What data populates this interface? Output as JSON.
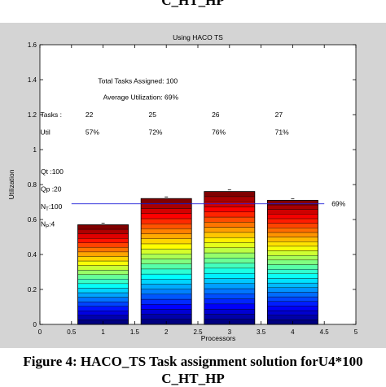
{
  "caption_top": "C_HT_HP",
  "caption_bottom_line1": "Figure 4: HACO_TS Task assignment solution forU4*100",
  "caption_bottom_line2": "C_HT_HP",
  "chart_data": {
    "type": "bar",
    "title": "Using HACO TS",
    "xlabel": "Processors",
    "ylabel": "Utilization",
    "xlim": [
      0,
      5
    ],
    "ylim": [
      0,
      1.6
    ],
    "xticks": [
      0,
      0.5,
      1,
      1.5,
      2,
      2.5,
      3,
      3.5,
      4,
      4.5,
      5
    ],
    "xtick_labels": [
      "0",
      "0.5",
      "1",
      "1.5",
      "2",
      "2.5",
      "3",
      "3.5",
      "4",
      "4.5",
      "5"
    ],
    "yticks": [
      0,
      0.2,
      0.4,
      0.6,
      0.8,
      1.0,
      1.2,
      1.4,
      1.6
    ],
    "ytick_labels": [
      "0",
      "0.2",
      "0.4",
      "0.6",
      "0.8",
      "1",
      "1.2",
      "1.4",
      "1.6"
    ],
    "categories": [
      1,
      2,
      3,
      4
    ],
    "values": [
      0.57,
      0.72,
      0.76,
      0.71
    ],
    "tasks_per_processor": [
      22,
      25,
      26,
      27
    ],
    "average_utilization": 0.69,
    "average_label": "69%",
    "annotations": {
      "total_tasks": "Total Tasks Assigned: 100",
      "avg_util": "Average Utilization: 69%",
      "tasks_label": "Tasks :",
      "tasks_values": [
        "22",
        "25",
        "26",
        "27"
      ],
      "util_label": "Util",
      "util_values": [
        "57%",
        "72%",
        "76%",
        "71%"
      ],
      "params": [
        "Qt :100",
        "Qp :20",
        "N",
        "N"
      ],
      "param_values": [
        "",
        "",
        ":100",
        ":4"
      ],
      "param_subscripts": [
        "",
        "",
        "T",
        "P"
      ]
    },
    "grid": false,
    "legend": "none"
  }
}
